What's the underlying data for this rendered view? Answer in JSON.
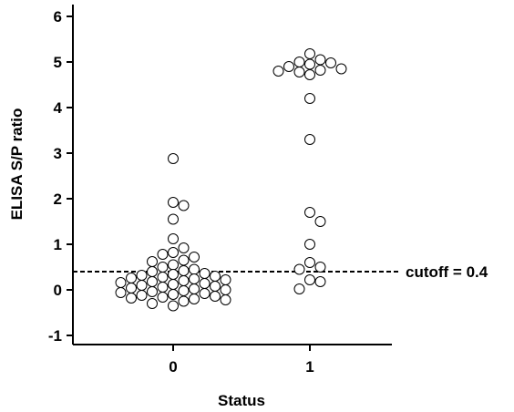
{
  "chart_data": {
    "type": "scatter",
    "title": "",
    "xlabel": "Status",
    "ylabel": "ELISA S/P ratio",
    "ylim": [
      -1.2,
      6.3
    ],
    "y_ticks": [
      -1,
      0,
      1,
      2,
      3,
      4,
      5,
      6
    ],
    "categories": [
      "0",
      "1"
    ],
    "grid": false,
    "cutoff": {
      "value": 0.4,
      "label": "cutoff = 0.4"
    },
    "series": [
      {
        "category": "0",
        "values": [
          2.88,
          1.92,
          1.85,
          1.55,
          1.12,
          0.92,
          0.82,
          0.78,
          0.72,
          0.65,
          0.62,
          0.55,
          0.5,
          0.45,
          0.42,
          0.4,
          0.36,
          0.34,
          0.32,
          0.3,
          0.28,
          0.26,
          0.24,
          0.22,
          0.2,
          0.18,
          0.16,
          0.14,
          0.12,
          0.1,
          0.08,
          0.06,
          0.04,
          0.02,
          0.0,
          -0.02,
          -0.04,
          -0.06,
          -0.08,
          -0.1,
          -0.12,
          -0.14,
          -0.16,
          -0.18,
          -0.2,
          -0.22,
          -0.25,
          -0.3,
          -0.35
        ]
      },
      {
        "category": "1",
        "values": [
          5.18,
          5.05,
          5.0,
          4.98,
          4.95,
          4.9,
          4.85,
          4.82,
          4.8,
          4.78,
          4.72,
          4.2,
          3.3,
          1.7,
          1.5,
          1.0,
          0.6,
          0.5,
          0.45,
          0.22,
          0.18,
          0.02
        ]
      }
    ]
  }
}
